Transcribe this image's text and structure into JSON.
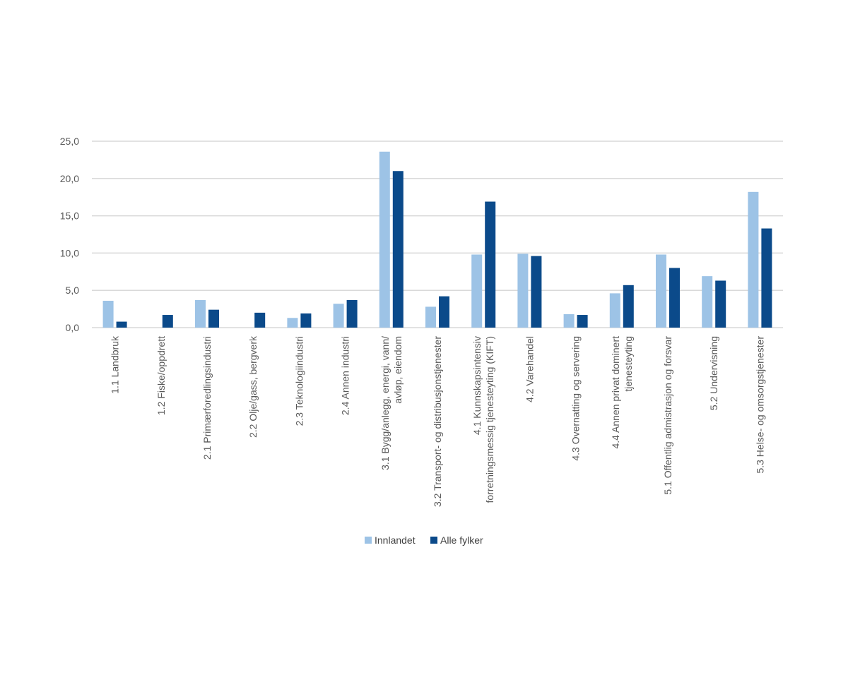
{
  "chart_data": {
    "type": "bar",
    "title": "",
    "xlabel": "",
    "ylabel": "",
    "ylim": [
      0,
      25
    ],
    "yticks": [
      0,
      5,
      10,
      15,
      20,
      25
    ],
    "ytick_labels": [
      "0,0",
      "5,0",
      "10,0",
      "15,0",
      "20,0",
      "25,0"
    ],
    "grid": true,
    "legend_position": "bottom",
    "categories": [
      [
        "1.1 Landbruk"
      ],
      [
        "1.2 Fiske/oppdrett"
      ],
      [
        "2.1 Primærforedlingsindustri"
      ],
      [
        "2.2 Olje/gass, bergverk"
      ],
      [
        "2.3 Teknologiindustri"
      ],
      [
        "2.4 Annen industri"
      ],
      [
        "3.1 Bygg/anlegg, energi, vann/",
        "avløp, eiendom"
      ],
      [
        "3.2 Transport- og distribusjonstjenester"
      ],
      [
        "4.1 Kunnskapsintensiv",
        "forretningsmessig tjenesteyting (KIFT)"
      ],
      [
        "4.2 Varehandel"
      ],
      [
        "4.3 Overnatting og servering"
      ],
      [
        "4.4 Annen privat dominert",
        "tjenesteyting"
      ],
      [
        "5.1 Offentlig admistrasjon og forsvar"
      ],
      [
        "5.2 Undervisning"
      ],
      [
        "5.3 Helse- og omsorgstjenester"
      ]
    ],
    "series": [
      {
        "name": "Innlandet",
        "color": "#9dc3e6",
        "values": [
          3.6,
          0.0,
          3.7,
          0.0,
          1.3,
          3.2,
          23.6,
          2.8,
          9.8,
          9.9,
          1.8,
          4.6,
          9.8,
          6.9,
          18.2
        ]
      },
      {
        "name": "Alle fylker",
        "color": "#0b4a8a",
        "values": [
          0.8,
          1.7,
          2.4,
          2.0,
          1.9,
          3.7,
          21.0,
          4.2,
          16.9,
          9.6,
          1.7,
          5.7,
          8.0,
          6.3,
          13.3
        ]
      }
    ]
  }
}
